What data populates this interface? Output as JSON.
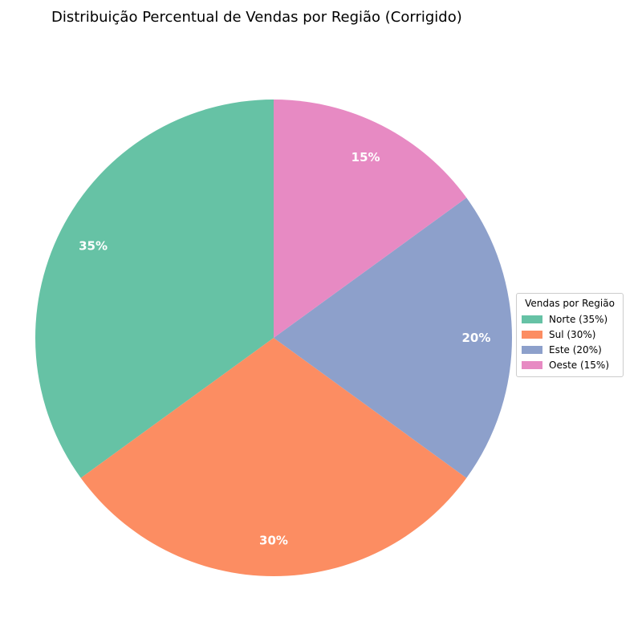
{
  "chart_data": {
    "type": "pie",
    "title": "Distribuição Percentual de Vendas por Região (Corrigido)",
    "legend_title": "Vendas por Região",
    "legend_placement": "center-right",
    "start_angle_deg": 90,
    "direction": "counterclockwise",
    "slices": [
      {
        "label": "Norte (35%)",
        "value": 35,
        "pct_label": "35%",
        "color": "#66c2a5"
      },
      {
        "label": "Sul (30%)",
        "value": 30,
        "pct_label": "30%",
        "color": "#fc8d62"
      },
      {
        "label": "Este (20%)",
        "value": 20,
        "pct_label": "20%",
        "color": "#8da0cb"
      },
      {
        "label": "Oeste (15%)",
        "value": 15,
        "pct_label": "15%",
        "color": "#e78ac3"
      }
    ]
  }
}
